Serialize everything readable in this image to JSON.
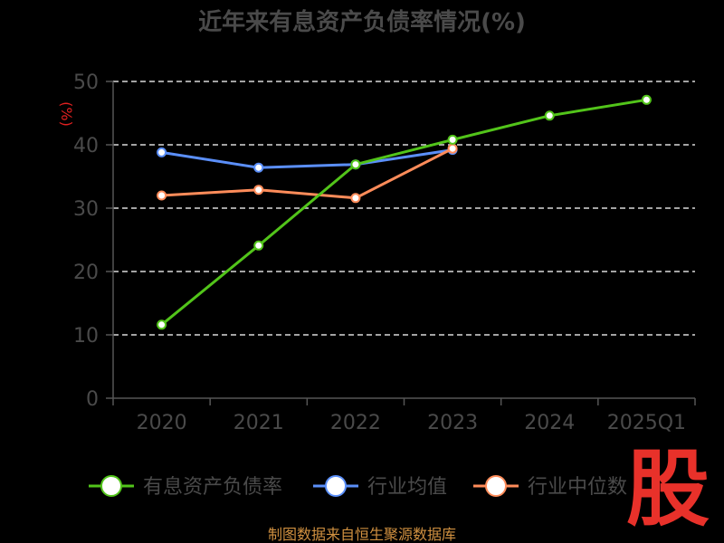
{
  "chart_data": {
    "type": "line",
    "title": "近年来有息资产负债率情况(%)",
    "ylabel": "(%)",
    "xlabel": "",
    "categories": [
      "2020",
      "2021",
      "2022",
      "2023",
      "2024",
      "2025Q1"
    ],
    "ylim": [
      0,
      50
    ],
    "yticks": [
      0,
      10,
      20,
      30,
      40,
      50
    ],
    "grid": true,
    "legend_position": "bottom",
    "series": [
      {
        "name": "有息资产负债率",
        "color": "#52c41a",
        "values": [
          11.6,
          24.1,
          36.9,
          40.8,
          44.6,
          47.1
        ]
      },
      {
        "name": "行业均值",
        "color": "#5b8ff9",
        "values": [
          38.8,
          36.4,
          36.9,
          39.2,
          null,
          null
        ]
      },
      {
        "name": "行业中位数",
        "color": "#ff8c5a",
        "values": [
          32.0,
          32.9,
          31.6,
          39.4,
          null,
          null
        ]
      }
    ]
  },
  "source": "制图数据来自恒生聚源数据库",
  "watermark": "股"
}
